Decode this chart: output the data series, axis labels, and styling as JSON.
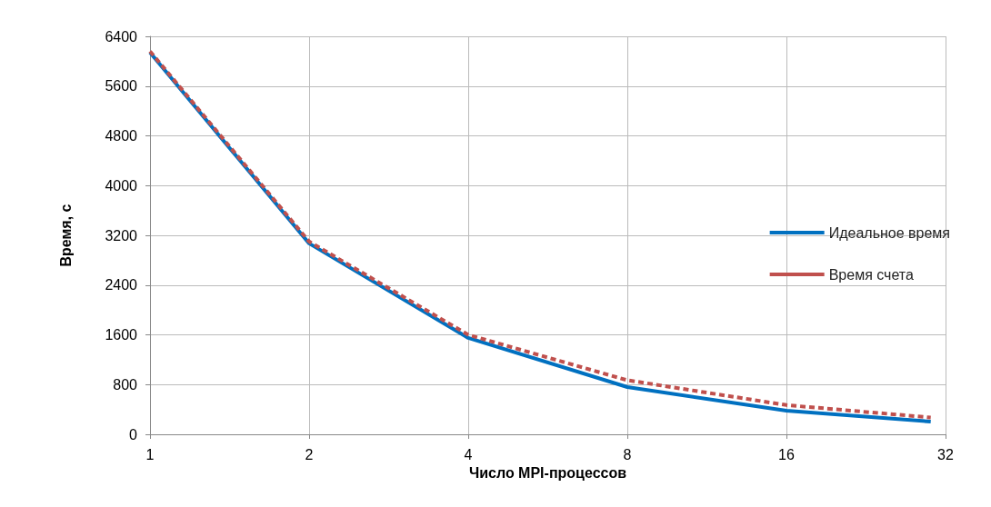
{
  "chart_data": {
    "type": "line",
    "xlabel": "Число MPI-процессов",
    "ylabel": "Время, с",
    "log": "x",
    "xlim": [
      1,
      32
    ],
    "xticks": [
      1,
      2,
      4,
      8,
      16,
      32
    ],
    "ylim": [
      0,
      6400
    ],
    "yticks": [
      0,
      800,
      1600,
      2400,
      3200,
      4000,
      4800,
      5600,
      6400
    ],
    "grid": true,
    "legend": "right",
    "marker": "none",
    "series": [
      {
        "name": "Идеальное время",
        "color": "#0070c0",
        "line_style": "solid",
        "x": [
          1,
          2,
          4,
          8,
          16,
          30
        ],
        "values": [
          6140,
          3070,
          1550,
          760,
          380,
          205
        ]
      },
      {
        "name": "Время счета",
        "color": "#c0504d",
        "line_style": "dashed",
        "x": [
          1,
          2,
          4,
          8,
          16,
          30
        ],
        "values": [
          6160,
          3100,
          1600,
          870,
          470,
          270
        ]
      }
    ]
  }
}
